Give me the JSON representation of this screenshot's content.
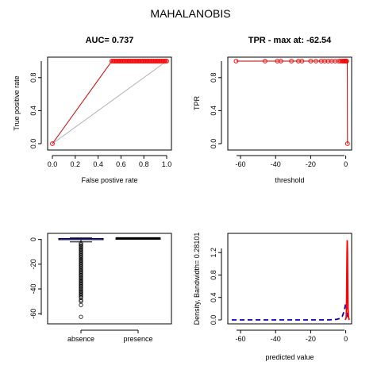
{
  "page_title": "MAHALANOBIS",
  "chart_data": [
    {
      "id": "roc",
      "type": "line",
      "title_prefix": "AUC= ",
      "title_value": "0.737",
      "xlabel": "False postive rate",
      "ylabel": "True positive rate",
      "xlim": [
        0,
        1
      ],
      "ylim": [
        0,
        1
      ],
      "xticks": [
        "0.0",
        "0.2",
        "0.4",
        "0.6",
        "0.8",
        "1.0"
      ],
      "yticks": [
        "0.0",
        "0.4",
        "0.8"
      ],
      "series": [
        {
          "name": "ROC curve",
          "color": "#cc0000",
          "x": [
            0,
            0.52,
            1.0
          ],
          "y": [
            0,
            1,
            1
          ]
        },
        {
          "name": "chance line",
          "color": "#b0b0b0",
          "x": [
            0,
            1
          ],
          "y": [
            0,
            1
          ]
        }
      ],
      "points": {
        "color": "#ff0000",
        "x": [
          0,
          0.52,
          0.53,
          0.54,
          0.55,
          0.56,
          0.57,
          0.58,
          0.59,
          0.6,
          0.61,
          0.62,
          0.63,
          0.64,
          0.65,
          0.66,
          0.67,
          0.68,
          0.69,
          0.7,
          0.71,
          0.72,
          0.73,
          0.74,
          0.75,
          0.76,
          0.77,
          0.78,
          0.79,
          0.8,
          0.81,
          0.82,
          0.83,
          0.84,
          0.85,
          0.86,
          0.87,
          0.88,
          0.89,
          0.9,
          0.91,
          0.92,
          0.93,
          0.94,
          0.95,
          0.96,
          0.97,
          0.98,
          0.99,
          1.0
        ],
        "y_default": 1,
        "first_y": 0
      }
    },
    {
      "id": "tpr",
      "type": "line",
      "title_prefix": "TPR - max at: ",
      "title_value": "-62.54",
      "xlabel": "threshold",
      "ylabel": "TPR",
      "xlim": [
        -65,
        2
      ],
      "ylim": [
        0,
        1
      ],
      "xticks": [
        "-60",
        "-40",
        "-20",
        "0"
      ],
      "yticks": [
        "0.0",
        "0.4",
        "0.8"
      ],
      "series": [
        {
          "name": "TPR",
          "color": "#cc0000",
          "x": [
            -62.54,
            0.5,
            0.9,
            1.0
          ],
          "y": [
            1,
            1,
            1,
            0
          ]
        }
      ],
      "points": {
        "color": "#ff0000",
        "x": [
          -62.54,
          -46,
          -39,
          -37,
          -31,
          -27,
          -25,
          -20,
          -17,
          -14,
          -12,
          -10,
          -8,
          -6,
          -4,
          -3,
          -2,
          -1.5,
          -1,
          -0.5,
          0,
          0.3,
          0.5,
          1.0
        ],
        "y": [
          1,
          1,
          1,
          1,
          1,
          1,
          1,
          1,
          1,
          1,
          1,
          1,
          1,
          1,
          1,
          1,
          1,
          1,
          1,
          1,
          1,
          1,
          1,
          0
        ]
      }
    },
    {
      "id": "boxplot",
      "type": "boxplot",
      "categories": [
        "absence",
        "presence"
      ],
      "ylim": [
        -65,
        3
      ],
      "yticks": [
        "0",
        "-20",
        "-40",
        "-60"
      ],
      "boxes": [
        {
          "name": "absence",
          "min": -2,
          "q1": -0.2,
          "median": 0.3,
          "q3": 0.8,
          "max": 1.2,
          "outliers": [
            -62.54,
            -53,
            -50,
            -49,
            -47,
            -46,
            -45,
            -44,
            -43,
            -42,
            -41,
            -40,
            -39,
            -38,
            -37,
            -36,
            -35,
            -34,
            -33,
            -32,
            -31,
            -30,
            -29,
            -28,
            -27,
            -26,
            -25,
            -24,
            -23,
            -22,
            -21,
            -20,
            -19,
            -18,
            -17,
            -16,
            -15,
            -14,
            -13,
            -12,
            -11,
            -10,
            -9,
            -8,
            -7,
            -6,
            -5,
            -4,
            -3
          ]
        },
        {
          "name": "presence",
          "min": 0.7,
          "q1": 0.9,
          "median": 1.0,
          "q3": 1.1,
          "max": 1.3,
          "outliers": []
        }
      ]
    },
    {
      "id": "density",
      "type": "line",
      "xlabel": "predicted value",
      "ylabel_prefix": "Density, Bandwidth= ",
      "ylabel_value": "0.28101",
      "xlim": [
        -65,
        2
      ],
      "ylim": [
        0,
        1.5
      ],
      "xticks": [
        "-60",
        "-40",
        "-20",
        "0"
      ],
      "yticks": [
        "0.0",
        "0.4",
        "0.8",
        "1.2"
      ],
      "series": [
        {
          "name": "absence",
          "color": "#0000cc",
          "dashed": true,
          "x": [
            -65,
            -10,
            -5,
            -3,
            -2,
            -1,
            -0.5,
            0,
            0.5,
            1.0
          ],
          "y": [
            0,
            0,
            0.01,
            0.03,
            0.06,
            0.15,
            0.22,
            0.3,
            0.2,
            0.05
          ]
        },
        {
          "name": "presence",
          "color": "#ff0000",
          "dashed": false,
          "x": [
            -0.2,
            0.3,
            0.5,
            0.7,
            0.85,
            1.0,
            1.15,
            1.3,
            1.6,
            2.0
          ],
          "y": [
            0,
            0.05,
            0.4,
            1.1,
            1.42,
            1.2,
            0.6,
            0.2,
            0.05,
            0
          ]
        }
      ]
    }
  ]
}
